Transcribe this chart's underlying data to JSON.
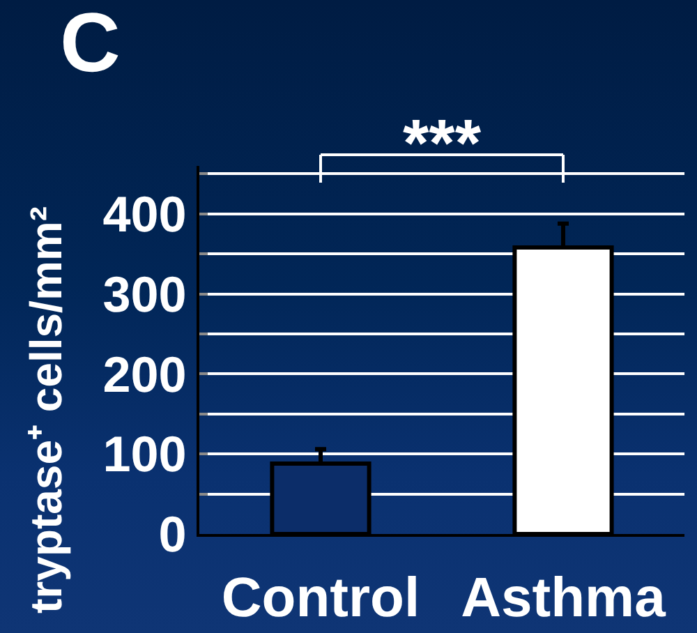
{
  "chart_data": {
    "type": "bar",
    "title": "C",
    "ylabel": "tryptase⁺ cells/mm²",
    "annotations": [
      "***"
    ],
    "categories": [
      "Control",
      "Asthma"
    ],
    "values": [
      88,
      358
    ],
    "colors": [
      "#0c2d69",
      "#ffffff"
    ],
    "errors": [
      [
        88,
        106
      ],
      [
        358,
        388
      ]
    ],
    "ylim": [
      0,
      460
    ],
    "yticks": [
      0,
      {
        "value": 50,
        "label": null
      },
      100,
      {
        "value": 150,
        "label": null
      },
      200,
      {
        "value": 250,
        "label": null
      },
      300,
      {
        "value": 350,
        "label": null
      },
      400,
      {
        "value": 450,
        "label": null
      }
    ],
    "grid": "y"
  }
}
